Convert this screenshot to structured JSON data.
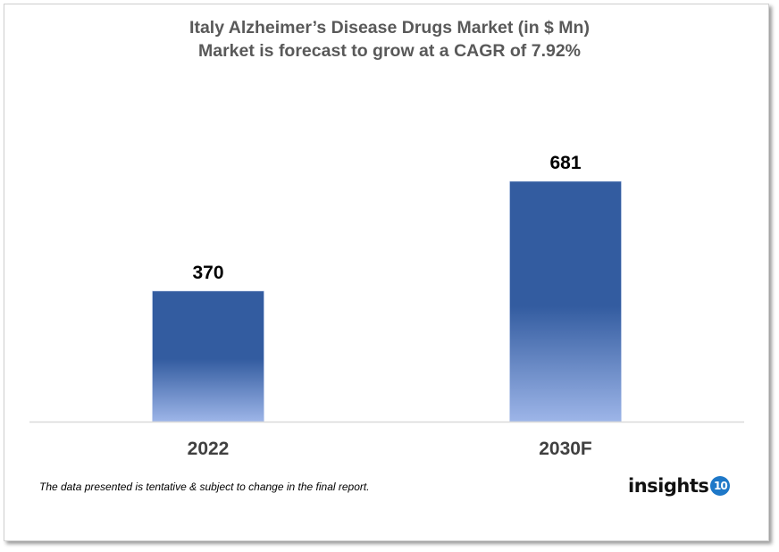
{
  "chart_data": {
    "type": "bar",
    "title": "Italy Alzheimer’s Disease Drugs Market (in $ Mn)",
    "subtitle": "Market is forecast to grow at a CAGR of 7.92%",
    "categories": [
      "2022",
      "2030F"
    ],
    "values": [
      370,
      681
    ],
    "ylim": [
      0,
      800
    ],
    "grid": false,
    "legend": "none",
    "colors": {
      "bar_top": "#335ca0",
      "bar_bottom": "#9db5e8",
      "axis": "#d9d9d9"
    }
  },
  "footnote": "The data presented is tentative & subject to change in the final report.",
  "logo": {
    "text": "insights",
    "badge": "10",
    "badge_color": "#1e78c8"
  }
}
